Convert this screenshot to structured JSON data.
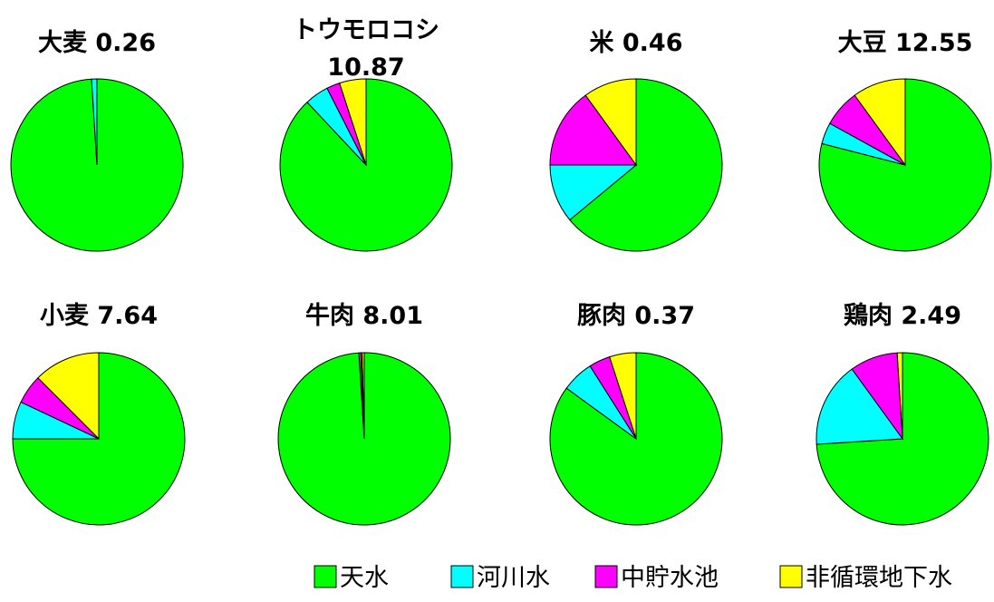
{
  "chart_data": {
    "type": "pie",
    "series_names": [
      "天水",
      "河川水",
      "中貯水池",
      "非循環地下水"
    ],
    "colors": {
      "天水": "#00ff00",
      "河川水": "#00ffff",
      "中貯水池": "#ff00ff",
      "非循環地下水": "#ffff00"
    },
    "legend_position": "bottom-right",
    "charts": [
      {
        "title": "大麦 0.26",
        "slices": [
          {
            "name": "天水",
            "value": 99.0
          },
          {
            "name": "河川水",
            "value": 1.0
          }
        ]
      },
      {
        "title_lines": [
          "トウモロコシ",
          "10.87"
        ],
        "slices": [
          {
            "name": "天水",
            "value": 88.0
          },
          {
            "name": "河川水",
            "value": 4.5
          },
          {
            "name": "中貯水池",
            "value": 2.5
          },
          {
            "name": "非循環地下水",
            "value": 5.0
          }
        ]
      },
      {
        "title": "米 0.46",
        "slices": [
          {
            "name": "天水",
            "value": 64.0
          },
          {
            "name": "河川水",
            "value": 11.0
          },
          {
            "name": "中貯水池",
            "value": 15.0
          },
          {
            "name": "非循環地下水",
            "value": 10.0
          }
        ]
      },
      {
        "title": "大豆 12.55",
        "slices": [
          {
            "name": "天水",
            "value": 79.0
          },
          {
            "name": "河川水",
            "value": 4.0
          },
          {
            "name": "中貯水池",
            "value": 7.0
          },
          {
            "name": "非循環地下水",
            "value": 10.0
          }
        ]
      },
      {
        "title": "小麦 7.64",
        "slices": [
          {
            "name": "天水",
            "value": 75.0
          },
          {
            "name": "河川水",
            "value": 7.0
          },
          {
            "name": "中貯水池",
            "value": 5.5
          },
          {
            "name": "非循環地下水",
            "value": 12.5
          }
        ]
      },
      {
        "title": "牛肉 8.01",
        "slices": [
          {
            "name": "天水",
            "value": 99.0
          },
          {
            "name": "河川水",
            "value": 0.3
          },
          {
            "name": "中貯水池",
            "value": 0.3
          },
          {
            "name": "非循環地下水",
            "value": 0.4
          }
        ]
      },
      {
        "title": "豚肉 0.37",
        "slices": [
          {
            "name": "天水",
            "value": 85.0
          },
          {
            "name": "河川水",
            "value": 6.0
          },
          {
            "name": "中貯水池",
            "value": 4.0
          },
          {
            "name": "非循環地下水",
            "value": 5.0
          }
        ]
      },
      {
        "title": "鶏肉 2.49",
        "slices": [
          {
            "name": "天水",
            "value": 74.0
          },
          {
            "name": "河川水",
            "value": 16.0
          },
          {
            "name": "中貯水池",
            "value": 9.0
          },
          {
            "name": "非循環地下水",
            "value": 1.0
          }
        ]
      }
    ]
  }
}
